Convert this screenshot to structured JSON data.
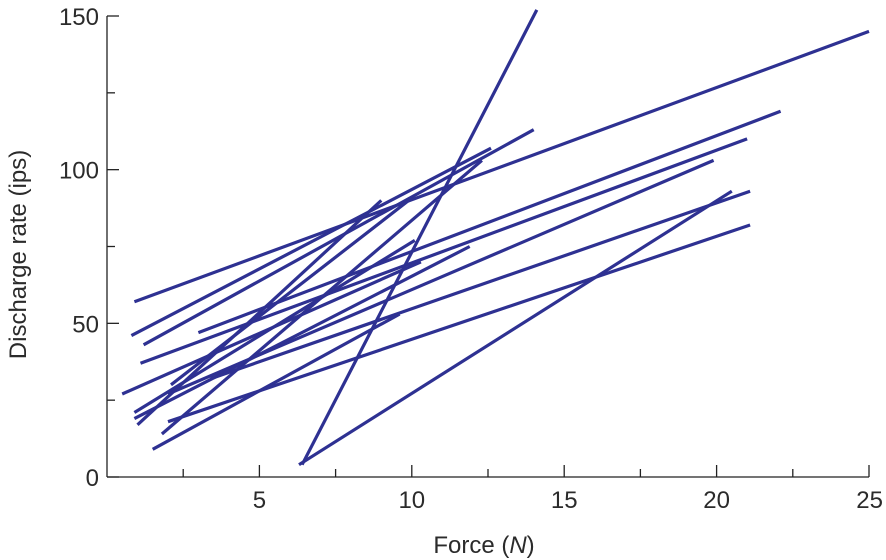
{
  "chart_data": {
    "type": "line",
    "title": "",
    "xlabel": "Force (",
    "xlabel_unit": "N",
    "xlabel_close": ")",
    "ylabel": "Discharge rate (ips)",
    "xlim": [
      0,
      25
    ],
    "ylim": [
      0,
      150
    ],
    "x_ticks": [
      5,
      10,
      15,
      20,
      25
    ],
    "y_ticks": [
      0,
      50,
      100,
      150
    ],
    "x_tick_labels": [
      "5",
      "10",
      "15",
      "20",
      "25"
    ],
    "y_tick_labels": [
      "0",
      "50",
      "100",
      "150"
    ],
    "grid": false,
    "legend": "none",
    "line_color": "#2e3192",
    "series": [
      {
        "x": [
          0.9,
          25.0
        ],
        "y": [
          57,
          145
        ]
      },
      {
        "x": [
          6.4,
          14.1
        ],
        "y": [
          4,
          152
        ]
      },
      {
        "x": [
          0.8,
          12.6
        ],
        "y": [
          46,
          107
        ]
      },
      {
        "x": [
          1.2,
          14.0
        ],
        "y": [
          43,
          113
        ]
      },
      {
        "x": [
          3.0,
          22.1
        ],
        "y": [
          47,
          119
        ]
      },
      {
        "x": [
          1.1,
          21.0
        ],
        "y": [
          37,
          110
        ]
      },
      {
        "x": [
          0.9,
          10.1
        ],
        "y": [
          21,
          77
        ]
      },
      {
        "x": [
          1.0,
          9.0
        ],
        "y": [
          17,
          90
        ]
      },
      {
        "x": [
          2.0,
          19.9
        ],
        "y": [
          27,
          103
        ]
      },
      {
        "x": [
          1.8,
          12.3
        ],
        "y": [
          14,
          103
        ]
      },
      {
        "x": [
          0.5,
          10.3
        ],
        "y": [
          27,
          70
        ]
      },
      {
        "x": [
          0.9,
          11.9
        ],
        "y": [
          19,
          75
        ]
      },
      {
        "x": [
          2.1,
          9.9
        ],
        "y": [
          30,
          90
        ]
      },
      {
        "x": [
          3.4,
          21.1
        ],
        "y": [
          32,
          93
        ]
      },
      {
        "x": [
          2.0,
          21.1
        ],
        "y": [
          18,
          82
        ]
      },
      {
        "x": [
          1.5,
          9.6
        ],
        "y": [
          9,
          53
        ]
      },
      {
        "x": [
          6.3,
          20.5
        ],
        "y": [
          4,
          93
        ]
      }
    ]
  }
}
